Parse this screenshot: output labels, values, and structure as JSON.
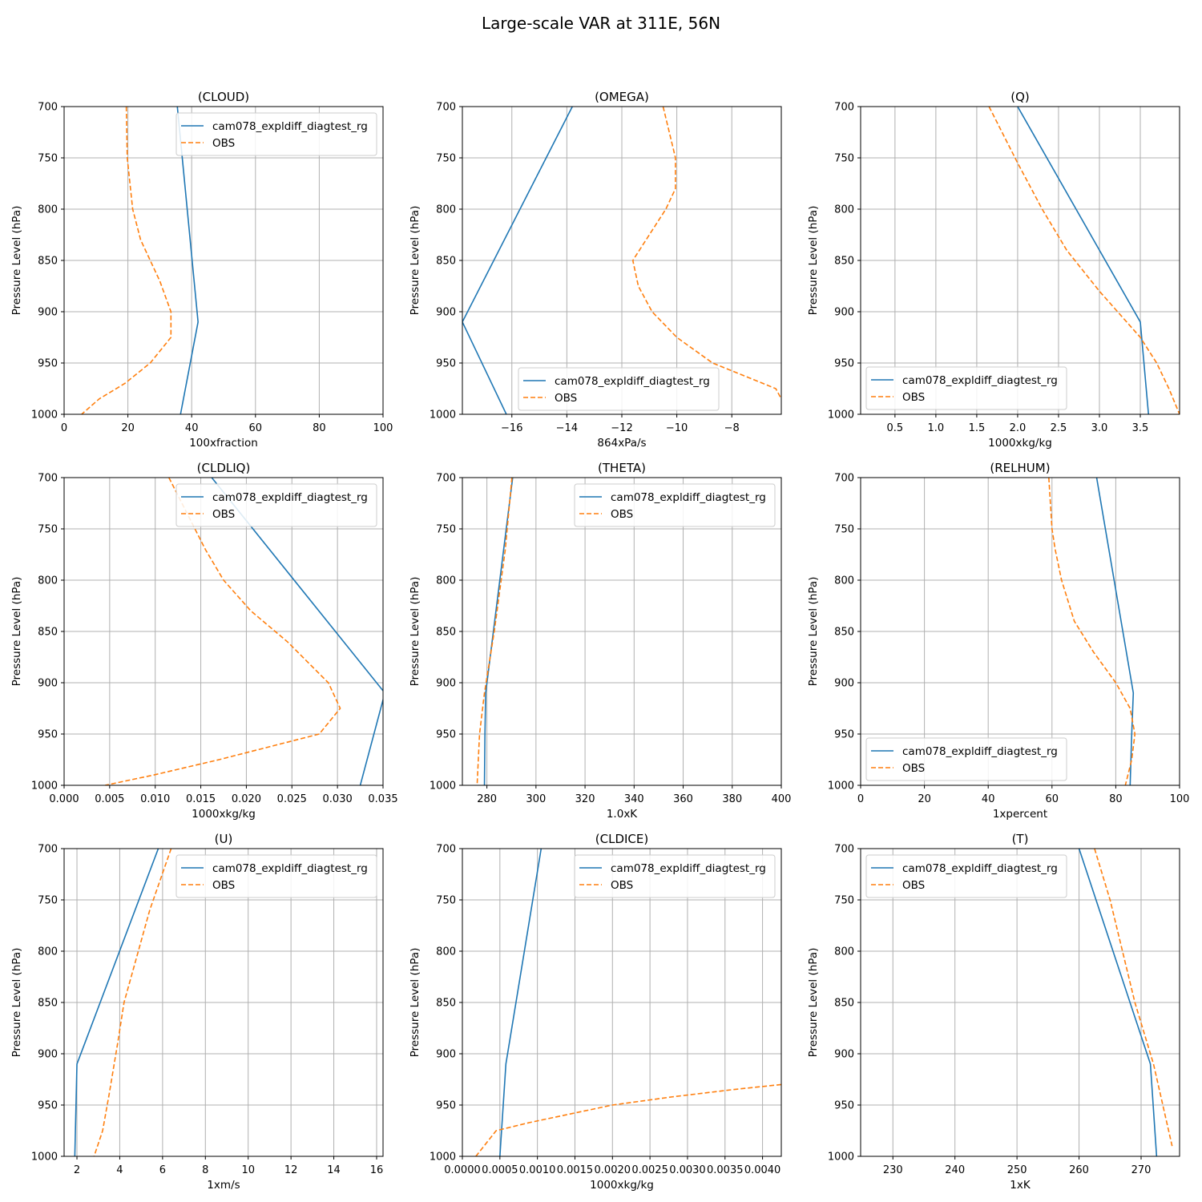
{
  "figure": {
    "title": "Large-scale VAR at 311E, 56N",
    "colors": {
      "model": "#1f77b4",
      "obs": "#ff7f0e",
      "grid": "#b0b0b0"
    }
  },
  "chart_data": [
    {
      "type": "line",
      "title": "(CLOUD)",
      "xlabel": "100xfraction",
      "ylabel": "Pressure Level (hPa)",
      "xlim": [
        0,
        100
      ],
      "ylim": [
        1000,
        700
      ],
      "xticks": [
        "0",
        "20",
        "40",
        "60",
        "80",
        "100"
      ],
      "yticks": [
        "700",
        "750",
        "800",
        "850",
        "900",
        "950",
        "1000"
      ],
      "grid": true,
      "legend_position": "upper right",
      "series": [
        {
          "name": "cam078_expldiff_diagtest_rg",
          "style": "solid",
          "x": [
            35.5,
            42,
            36.5
          ],
          "y": [
            700,
            910,
            1000
          ]
        },
        {
          "name": "OBS",
          "style": "dashed",
          "x": [
            19.5,
            19.8,
            21.5,
            24,
            27,
            30,
            33.5,
            33.5,
            27,
            19,
            11,
            5.5
          ],
          "y": [
            700,
            750,
            800,
            830,
            850,
            870,
            900,
            925,
            950,
            970,
            985,
            1000
          ]
        }
      ]
    },
    {
      "type": "line",
      "title": "(OMEGA)",
      "xlabel": "864xPa/s",
      "ylabel": "Pressure Level (hPa)",
      "xlim": [
        -17.8,
        -6.2
      ],
      "ylim": [
        1000,
        700
      ],
      "xticks": [
        "−16",
        "−14",
        "−12",
        "−10",
        "−8"
      ],
      "yticks": [
        "700",
        "750",
        "800",
        "850",
        "900",
        "950",
        "1000"
      ],
      "grid": true,
      "legend_position": "lower right",
      "series": [
        {
          "name": "cam078_expldiff_diagtest_rg",
          "style": "solid",
          "x": [
            -13.8,
            -17.8,
            -16.2
          ],
          "y": [
            700,
            910,
            1000
          ]
        },
        {
          "name": "OBS",
          "style": "dashed",
          "x": [
            -10.5,
            -10.05,
            -10.05,
            -10.4,
            -11.6,
            -11.4,
            -10.9,
            -10,
            -8.7,
            -6.4,
            -6.2
          ],
          "y": [
            700,
            750,
            780,
            800,
            850,
            875,
            900,
            925,
            950,
            975,
            985
          ]
        }
      ]
    },
    {
      "type": "line",
      "title": "(Q)",
      "xlabel": "1000xkg/kg",
      "ylabel": "Pressure Level (hPa)",
      "xlim": [
        0.08,
        3.98
      ],
      "ylim": [
        1000,
        700
      ],
      "xticks": [
        "0.5",
        "1.0",
        "1.5",
        "2.0",
        "2.5",
        "3.0",
        "3.5"
      ],
      "yticks": [
        "700",
        "750",
        "800",
        "850",
        "900",
        "950",
        "1000"
      ],
      "grid": true,
      "legend_position": "lower left",
      "series": [
        {
          "name": "cam078_expldiff_diagtest_rg",
          "style": "solid",
          "x": [
            2.0,
            3.5,
            3.6
          ],
          "y": [
            700,
            910,
            1000
          ]
        },
        {
          "name": "OBS",
          "style": "dashed",
          "x": [
            1.65,
            2.0,
            2.3,
            2.6,
            3.0,
            3.5,
            3.7,
            3.85,
            3.98
          ],
          "y": [
            700,
            755,
            800,
            840,
            880,
            925,
            950,
            975,
            1000
          ]
        }
      ]
    },
    {
      "type": "line",
      "title": "(CLDLIQ)",
      "xlabel": "1000xkg/kg",
      "ylabel": "Pressure Level (hPa)",
      "xlim": [
        0,
        0.035
      ],
      "ylim": [
        1000,
        700
      ],
      "xticks": [
        "0.000",
        "0.005",
        "0.010",
        "0.015",
        "0.020",
        "0.025",
        "0.030",
        "0.035"
      ],
      "yticks": [
        "700",
        "750",
        "800",
        "850",
        "900",
        "950",
        "1000"
      ],
      "grid": true,
      "legend_position": "upper right",
      "series": [
        {
          "name": "cam078_expldiff_diagtest_rg",
          "style": "solid",
          "x": [
            0.0162,
            0.0352,
            0.0325
          ],
          "y": [
            700,
            910,
            1000
          ]
        },
        {
          "name": "OBS",
          "style": "dashed",
          "x": [
            0.0115,
            0.0155,
            0.0175,
            0.0205,
            0.0245,
            0.029,
            0.0303,
            0.028,
            0.017,
            0.0098,
            0.0045
          ],
          "y": [
            700,
            770,
            800,
            830,
            860,
            900,
            925,
            950,
            975,
            990,
            1000
          ]
        }
      ]
    },
    {
      "type": "line",
      "title": "(THETA)",
      "xlabel": "1.0xK",
      "ylabel": "Pressure Level (hPa)",
      "xlim": [
        270,
        400
      ],
      "ylim": [
        1000,
        700
      ],
      "xticks": [
        "280",
        "300",
        "320",
        "340",
        "360",
        "380",
        "400"
      ],
      "yticks": [
        "700",
        "750",
        "800",
        "850",
        "900",
        "950",
        "1000"
      ],
      "grid": true,
      "legend_position": "upper right",
      "series": [
        {
          "name": "cam078_expldiff_diagtest_rg",
          "style": "solid",
          "x": [
            290.5,
            279.5,
            279.2,
            279
          ],
          "y": [
            700,
            910,
            950,
            1000
          ]
        },
        {
          "name": "OBS",
          "style": "dashed",
          "x": [
            290.2,
            287.5,
            283,
            279,
            277,
            276
          ],
          "y": [
            700,
            770,
            850,
            910,
            950,
            1000
          ]
        }
      ]
    },
    {
      "type": "line",
      "title": "(RELHUM)",
      "xlabel": "1xpercent",
      "ylabel": "Pressure Level (hPa)",
      "xlim": [
        0,
        100
      ],
      "ylim": [
        1000,
        700
      ],
      "xticks": [
        "0",
        "20",
        "40",
        "60",
        "80",
        "100"
      ],
      "yticks": [
        "700",
        "750",
        "800",
        "850",
        "900",
        "950",
        "1000"
      ],
      "grid": true,
      "legend_position": "lower left",
      "series": [
        {
          "name": "cam078_expldiff_diagtest_rg",
          "style": "solid",
          "x": [
            74,
            85.5,
            85,
            84.5
          ],
          "y": [
            700,
            910,
            950,
            1000
          ]
        },
        {
          "name": "OBS",
          "style": "dashed",
          "x": [
            59,
            60,
            61,
            63,
            67,
            73,
            80,
            84.5,
            86,
            85,
            83
          ],
          "y": [
            700,
            750,
            770,
            800,
            840,
            870,
            900,
            925,
            950,
            975,
            1000
          ]
        }
      ]
    },
    {
      "type": "line",
      "title": "(U)",
      "xlabel": "1xm/s",
      "ylabel": "Pressure Level (hPa)",
      "xlim": [
        1.4,
        16.3
      ],
      "ylim": [
        1000,
        700
      ],
      "xticks": [
        "2",
        "4",
        "6",
        "8",
        "10",
        "12",
        "14",
        "16"
      ],
      "yticks": [
        "700",
        "750",
        "800",
        "850",
        "900",
        "950",
        "1000"
      ],
      "grid": true,
      "legend_position": "upper right",
      "series": [
        {
          "name": "cam078_expldiff_diagtest_rg",
          "style": "solid",
          "x": [
            5.8,
            2.0,
            1.9
          ],
          "y": [
            700,
            910,
            1000
          ]
        },
        {
          "name": "OBS",
          "style": "dashed",
          "x": [
            6.4,
            5.4,
            4.6,
            4.2,
            3.9,
            3.5,
            3.2,
            2.8
          ],
          "y": [
            700,
            760,
            820,
            850,
            890,
            940,
            975,
            1000
          ]
        }
      ]
    },
    {
      "type": "line",
      "title": "(CLDICE)",
      "xlabel": "1000xkg/kg",
      "ylabel": "Pressure Level (hPa)",
      "xlim": [
        0,
        0.00425
      ],
      "ylim": [
        1000,
        700
      ],
      "xticks": [
        "0.0000",
        "0.0005",
        "0.0010",
        "0.0015",
        "0.0020",
        "0.0025",
        "0.0030",
        "0.0035",
        "0.0040"
      ],
      "yticks": [
        "700",
        "750",
        "800",
        "850",
        "900",
        "950",
        "1000"
      ],
      "grid": true,
      "legend_position": "upper right",
      "series": [
        {
          "name": "cam078_expldiff_diagtest_rg",
          "style": "solid",
          "x": [
            0.00105,
            0.00058,
            0.0005
          ],
          "y": [
            700,
            910,
            1000
          ]
        },
        {
          "name": "OBS",
          "style": "dashed",
          "x": [
            0.00425,
            0.0036,
            0.0028,
            0.002,
            0.0009,
            0.00045,
            0.00018
          ],
          "y": [
            930,
            935,
            942,
            950,
            967,
            975,
            1000
          ]
        }
      ]
    },
    {
      "type": "line",
      "title": "(T)",
      "xlabel": "1xK",
      "ylabel": "Pressure Level (hPa)",
      "xlim": [
        224.8,
        276.2
      ],
      "ylim": [
        1000,
        700
      ],
      "xticks": [
        "230",
        "240",
        "250",
        "260",
        "270"
      ],
      "yticks": [
        "700",
        "750",
        "800",
        "850",
        "900",
        "950",
        "1000"
      ],
      "grid": true,
      "legend_position": "upper left",
      "series": [
        {
          "name": "cam078_expldiff_diagtest_rg",
          "style": "solid",
          "x": [
            260,
            271.5,
            272.5
          ],
          "y": [
            700,
            910,
            1000
          ]
        },
        {
          "name": "OBS",
          "style": "dashed",
          "x": [
            262.5,
            265,
            267,
            269,
            270.5,
            272,
            273.5,
            275
          ],
          "y": [
            700,
            750,
            800,
            850,
            880,
            910,
            950,
            990
          ]
        }
      ]
    }
  ]
}
